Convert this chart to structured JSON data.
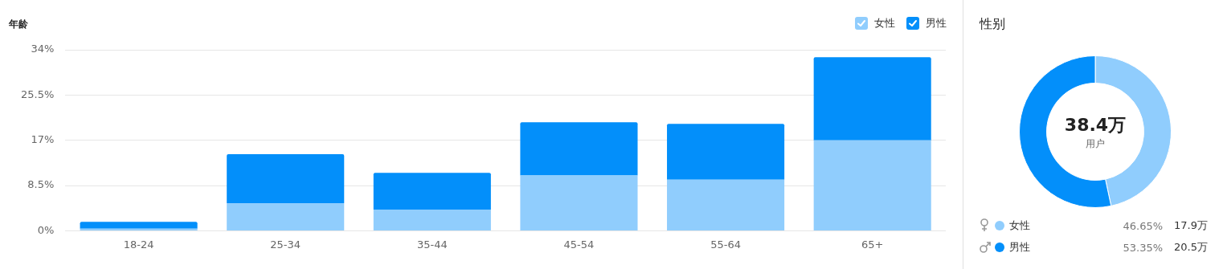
{
  "chart_data": [
    {
      "type": "bar",
      "ylabel": "年龄",
      "categories": [
        "18-24",
        "25-34",
        "35-44",
        "45-54",
        "55-64",
        "65+"
      ],
      "stacked": true,
      "series": [
        {
          "name": "女性",
          "color": "#90cdfd",
          "values": [
            0.4,
            5.2,
            4.0,
            10.4,
            9.6,
            17.0
          ]
        },
        {
          "name": "男性",
          "color": "#038ffa",
          "values": [
            1.3,
            9.2,
            6.9,
            10.0,
            10.5,
            15.6
          ]
        }
      ],
      "ylim": [
        0,
        34
      ],
      "yticks": [
        {
          "value": 0,
          "label": "0%"
        },
        {
          "value": 8.5,
          "label": "8.5%"
        },
        {
          "value": 17,
          "label": "17%"
        },
        {
          "value": 25.5,
          "label": "25.5%"
        },
        {
          "value": 34,
          "label": "34%"
        }
      ],
      "grid": "y",
      "legend": "top right"
    },
    {
      "type": "donut",
      "title": "性别",
      "categories": [
        "女性",
        "男性"
      ],
      "values": [
        46.65,
        53.35
      ],
      "colors": [
        "#90cdfd",
        "#038ffa"
      ],
      "value_labels": [
        "46.65%",
        "53.35%"
      ],
      "annotations": [
        "38.4万",
        "用户",
        "17.9万",
        "20.5万"
      ],
      "legend": "bottom"
    }
  ]
}
